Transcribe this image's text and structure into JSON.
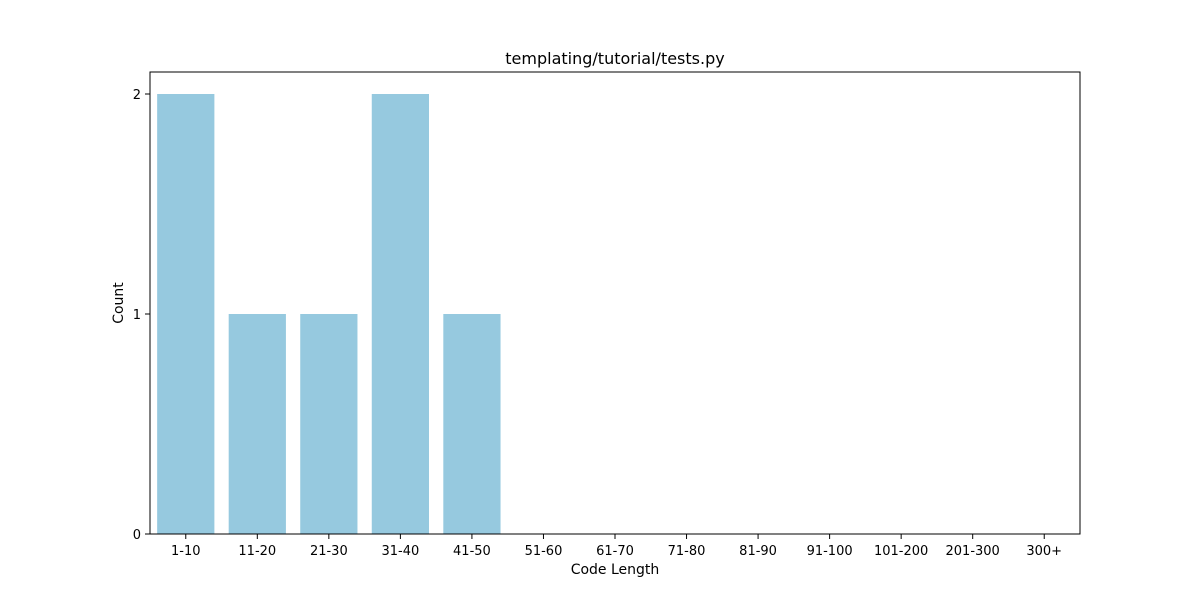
{
  "chart_data": {
    "type": "bar",
    "title": "templating/tutorial/tests.py",
    "xlabel": "Code Length",
    "ylabel": "Count",
    "categories": [
      "1-10",
      "11-20",
      "21-30",
      "31-40",
      "41-50",
      "51-60",
      "61-70",
      "71-80",
      "81-90",
      "91-100",
      "101-200",
      "201-300",
      "300+"
    ],
    "values": [
      2,
      1,
      1,
      2,
      1,
      0,
      0,
      0,
      0,
      0,
      0,
      0,
      0
    ],
    "ylim": [
      0,
      2.1
    ],
    "yticks": [
      0,
      1,
      2
    ],
    "grid": false,
    "legend": "none",
    "bar_color": "#96c9df"
  }
}
